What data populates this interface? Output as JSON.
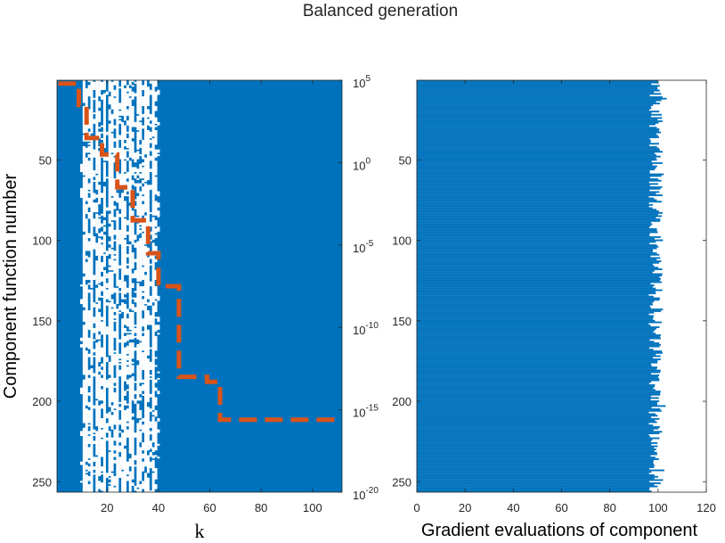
{
  "title": "Balanced generation",
  "colors": {
    "blue": "#0072BD",
    "orange": "#D95319",
    "axis": "#262626"
  },
  "chart_data": [
    {
      "type": "heatmap",
      "description_free": true,
      "xlabel": "k",
      "ylabel": "Component function number",
      "xlim": [
        0.5,
        111.5
      ],
      "ylim": [
        0.5,
        256.5
      ],
      "x_ticks": [
        20,
        40,
        60,
        80,
        100
      ],
      "x_tick_labels": [
        "20",
        "40",
        "60",
        "80",
        "100"
      ],
      "y_ticks": [
        50,
        100,
        150,
        200,
        250
      ],
      "y_tick_labels": [
        "50",
        "100",
        "150",
        "200",
        "250"
      ],
      "white_region_k": [
        10,
        40
      ],
      "right_axis": {
        "scale": "log",
        "ylim_exp": [
          -20,
          5
        ],
        "ticks_exp": [
          5,
          0,
          -5,
          -10,
          -15,
          -20
        ],
        "tick_labels": [
          {
            "base": "10",
            "exp": "5"
          },
          {
            "base": "10",
            "exp": "0"
          },
          {
            "base": "10",
            "exp": "-5"
          },
          {
            "base": "10",
            "exp": "-10"
          },
          {
            "base": "10",
            "exp": "-15"
          },
          {
            "base": "10",
            "exp": "-20"
          }
        ]
      },
      "step_line": {
        "style": "dashed",
        "k": [
          1,
          9,
          12,
          18,
          24,
          30,
          36,
          40,
          48,
          59,
          64,
          111
        ],
        "log10_value": [
          4.8,
          3.5,
          1.5,
          0.5,
          -1.5,
          -3.5,
          -5.5,
          -7.5,
          -13,
          -13.3,
          -15.6,
          -15.6
        ]
      }
    },
    {
      "type": "bar",
      "orientation": "horizontal",
      "xlabel": "Gradient evaluations of component",
      "ylabel": "",
      "xlim": [
        0,
        120
      ],
      "ylim": [
        0.5,
        256.5
      ],
      "x_ticks": [
        0,
        20,
        40,
        60,
        80,
        100,
        120
      ],
      "x_tick_labels": [
        "0",
        "20",
        "40",
        "60",
        "80",
        "100",
        "120"
      ],
      "y_ticks": [
        50,
        100,
        150,
        200,
        250
      ],
      "y_tick_labels": [
        "50",
        "100",
        "150",
        "200",
        "250"
      ],
      "n_components": 256,
      "value_range": [
        96,
        104
      ],
      "mean_value": 100
    }
  ]
}
